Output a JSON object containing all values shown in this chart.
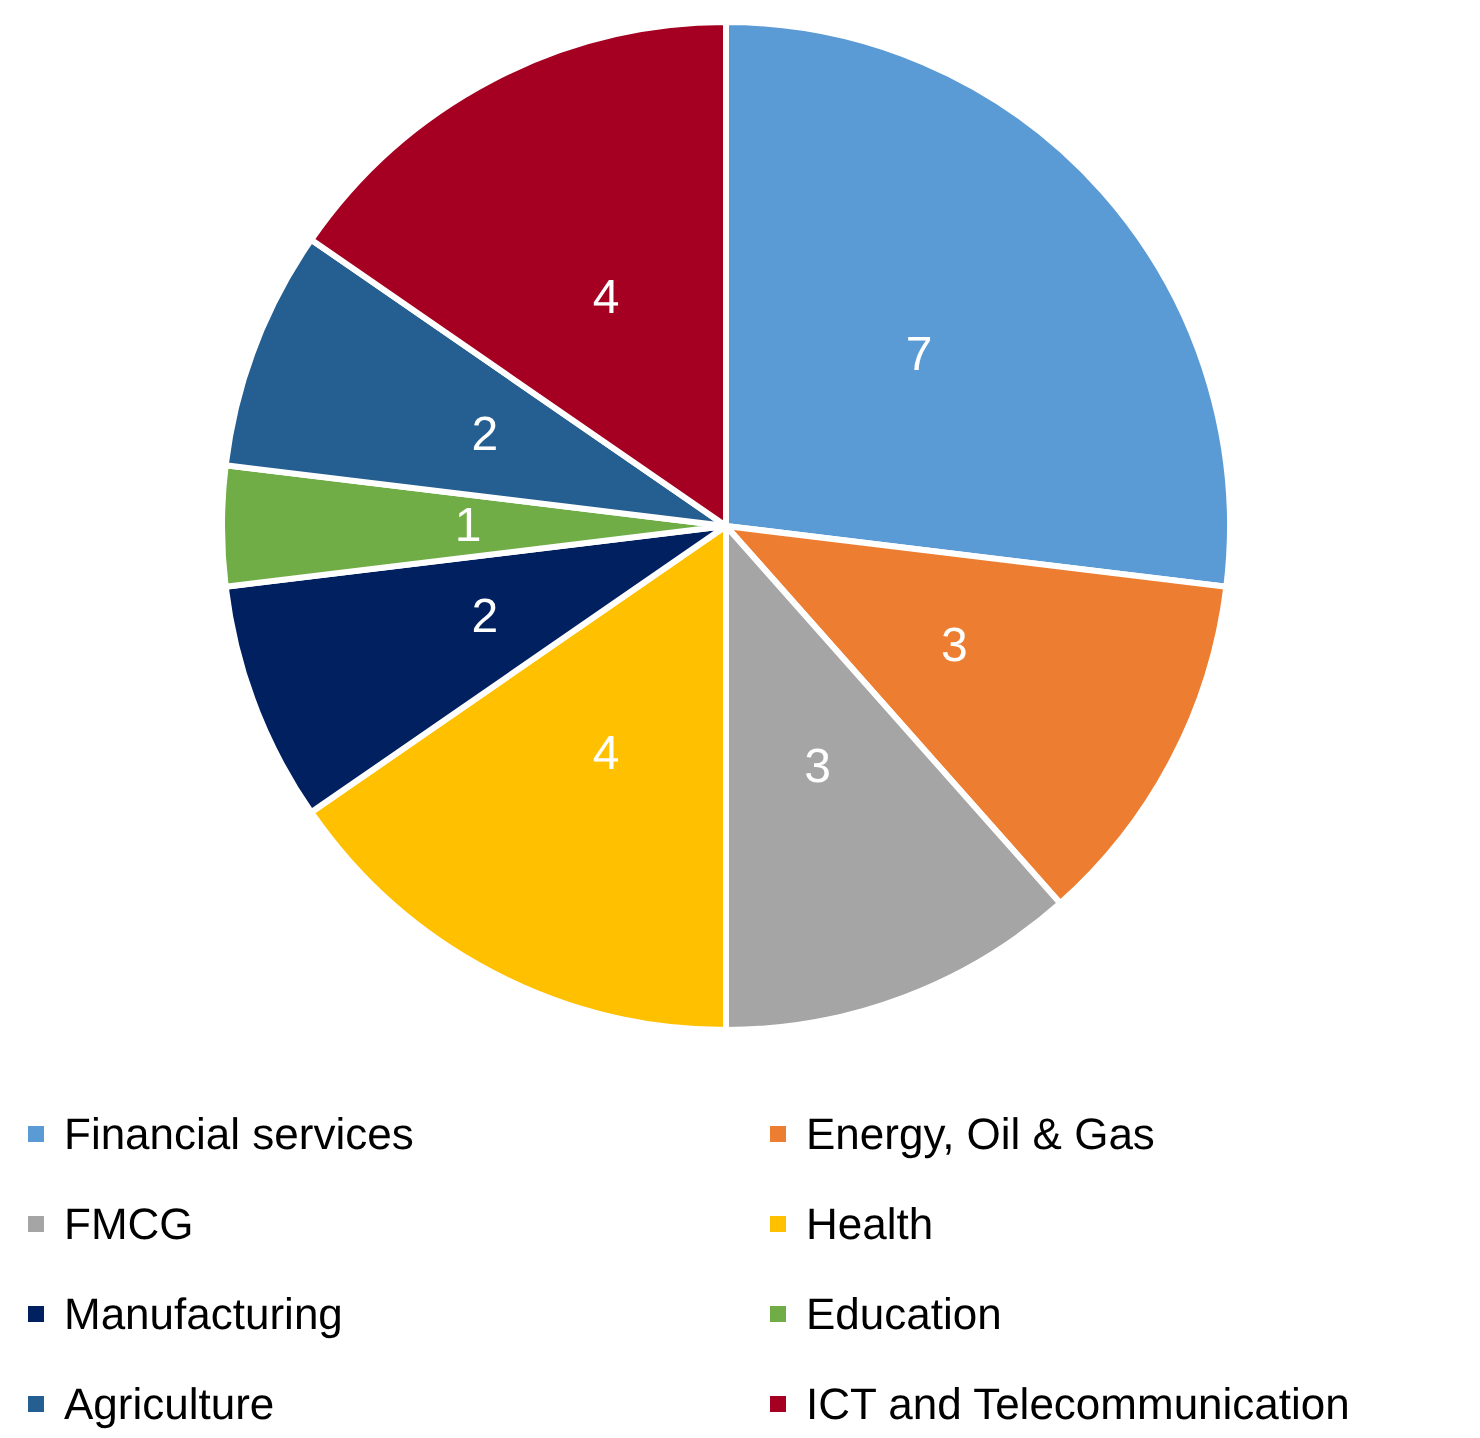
{
  "chart_data": {
    "type": "pie",
    "categories": [
      "Financial services",
      "Energy, Oil & Gas",
      "FMCG",
      "Health",
      "Manufacturing",
      "Education",
      "Agriculture",
      "ICT and Telecommunication"
    ],
    "values": [
      7,
      3,
      3,
      4,
      2,
      1,
      2,
      4
    ],
    "colors": [
      "#5b9bd5",
      "#ed7d31",
      "#a5a5a5",
      "#ffc000",
      "#002060",
      "#70ad47",
      "#255e91",
      "#a50021"
    ],
    "data_labels": true,
    "legend": "bottom"
  }
}
